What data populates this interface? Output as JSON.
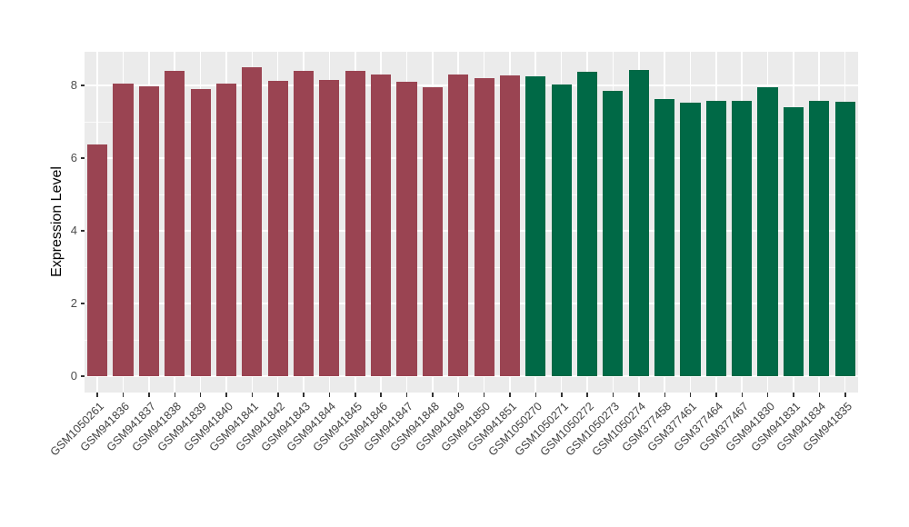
{
  "figure": {
    "background": "#FFFFFF",
    "panel_background": "#EBEBEB",
    "grid_color": "#FFFFFF",
    "axis_text_color": "#4D4D4D",
    "x_label_color": "#404040",
    "axis_title_color": "#000000",
    "tick_mark_color": "#333333"
  },
  "chart_data": {
    "type": "bar",
    "title": "",
    "xlabel": "",
    "ylabel": "Expression Level",
    "ylim": [
      0,
      8.92
    ],
    "yticks": [
      0,
      2,
      4,
      6,
      8
    ],
    "yticks_minor": [
      1,
      3,
      5,
      7
    ],
    "grid": "on",
    "legend": "none",
    "x_tick_angle": 45,
    "categories": [
      "GSM1050261",
      "GSM941836",
      "GSM941837",
      "GSM941838",
      "GSM941839",
      "GSM941840",
      "GSM941841",
      "GSM941842",
      "GSM941843",
      "GSM941844",
      "GSM941845",
      "GSM941846",
      "GSM941847",
      "GSM941848",
      "GSM941849",
      "GSM941850",
      "GSM941851",
      "GSM1050270",
      "GSM1050271",
      "GSM1050272",
      "GSM1050273",
      "GSM1050274",
      "GSM377458",
      "GSM377461",
      "GSM377464",
      "GSM377467",
      "GSM941830",
      "GSM941831",
      "GSM941834",
      "GSM941835"
    ],
    "values": [
      6.37,
      8.05,
      7.97,
      8.41,
      7.9,
      8.04,
      8.5,
      8.13,
      8.39,
      8.15,
      8.41,
      8.31,
      8.1,
      7.94,
      8.3,
      8.2,
      8.28,
      8.25,
      8.03,
      8.38,
      7.84,
      8.43,
      7.63,
      7.53,
      7.58,
      7.58,
      7.94,
      7.41,
      7.57,
      7.54
    ],
    "bar_groups": [
      "maroon",
      "maroon",
      "maroon",
      "maroon",
      "maroon",
      "maroon",
      "maroon",
      "maroon",
      "maroon",
      "maroon",
      "maroon",
      "maroon",
      "maroon",
      "maroon",
      "maroon",
      "maroon",
      "maroon",
      "green",
      "green",
      "green",
      "green",
      "green",
      "green",
      "green",
      "green",
      "green",
      "green",
      "green",
      "green",
      "green"
    ],
    "group_colors": {
      "maroon": "#9A4452",
      "green": "#006946"
    }
  }
}
